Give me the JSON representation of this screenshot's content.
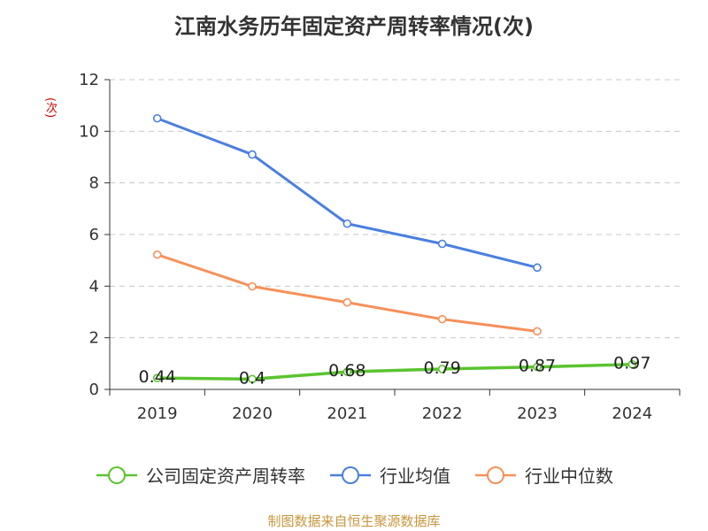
{
  "chart_data": {
    "type": "line",
    "title": "江南水务历年固定资产周转率情况(次)",
    "ylabel": "(次)",
    "xlabel": "",
    "categories": [
      "2019",
      "2020",
      "2021",
      "2022",
      "2023",
      "2024"
    ],
    "ylim": [
      0,
      12
    ],
    "yticks": [
      0,
      2,
      4,
      6,
      8,
      10,
      12
    ],
    "grid": true,
    "legend_position": "bottom",
    "series": [
      {
        "name": "公司固定资产周转率",
        "color": "#5bc42f",
        "values": [
          0.44,
          0.4,
          0.68,
          0.79,
          0.87,
          0.97
        ],
        "labels": [
          "0.44",
          "0.4",
          "0.68",
          "0.79",
          "0.87",
          "0.97"
        ]
      },
      {
        "name": "行业均值",
        "color": "#4a7fe0",
        "values": [
          10.5,
          9.1,
          6.42,
          5.64,
          4.72,
          null
        ]
      },
      {
        "name": "行业中位数",
        "color": "#f7905a",
        "values": [
          5.22,
          3.99,
          3.37,
          2.72,
          2.25,
          null
        ]
      }
    ]
  },
  "source": "制图数据来自恒生聚源数据库"
}
